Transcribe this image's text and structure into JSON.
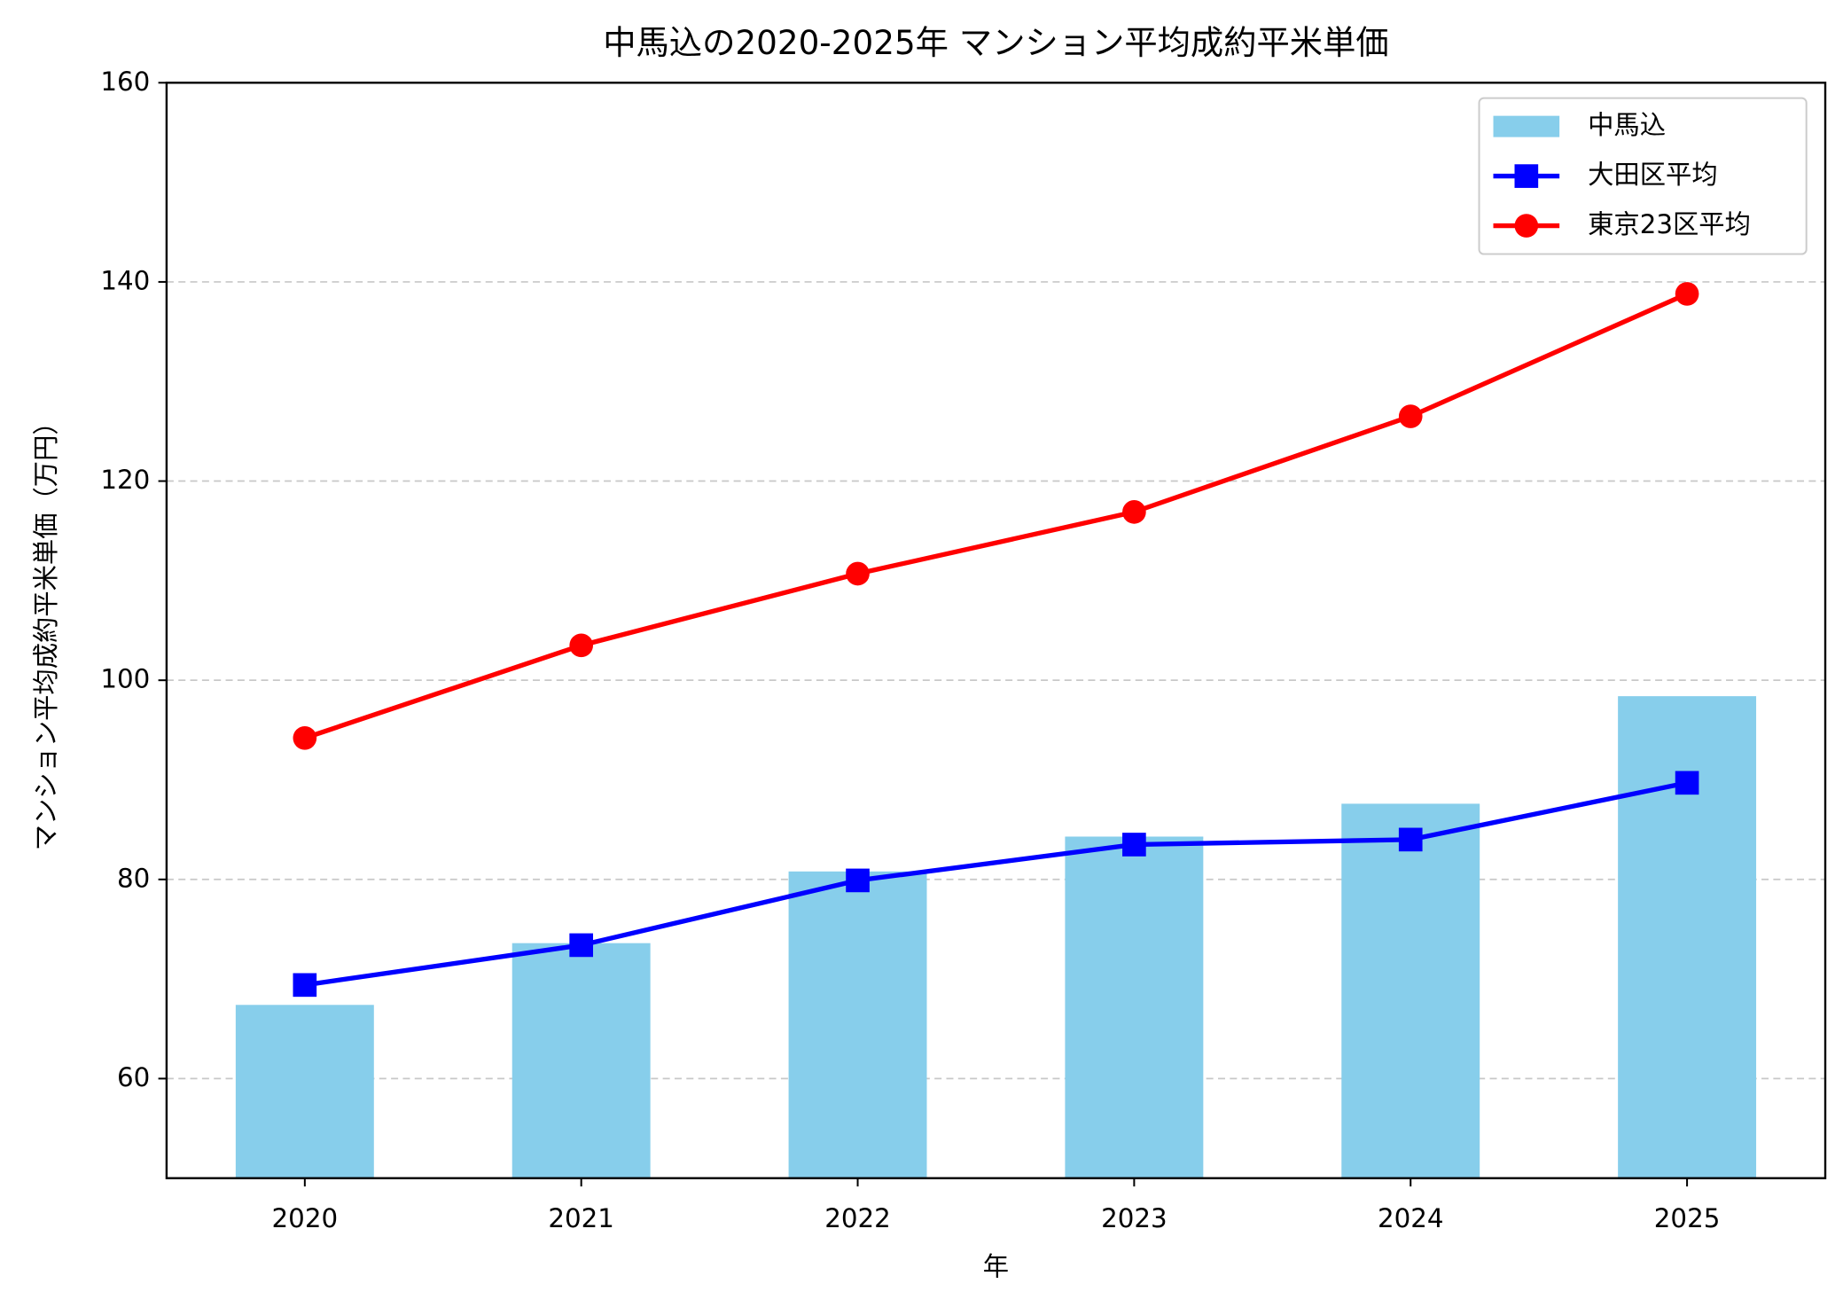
{
  "chart_data": {
    "type": "bar",
    "title": "中馬込の2020-2025年 マンション平均成約平米単価",
    "x_label": "年",
    "y_label": "マンション平均成約平米単価（万円）",
    "categories": [
      "2020",
      "2021",
      "2022",
      "2023",
      "2024",
      "2025"
    ],
    "series": [
      {
        "name": "中馬込",
        "type": "bar",
        "color": "#87ceeb",
        "values": [
          67.4,
          73.6,
          80.8,
          84.3,
          87.6,
          98.4
        ]
      },
      {
        "name": "大田区平均",
        "type": "line",
        "marker": "square",
        "color": "#0000ff",
        "values": [
          69.4,
          73.4,
          79.9,
          83.5,
          84.0,
          89.7
        ]
      },
      {
        "name": "東京23区平均",
        "type": "line",
        "marker": "circle",
        "color": "#ff0000",
        "values": [
          94.2,
          103.5,
          110.7,
          116.9,
          126.5,
          138.8
        ]
      }
    ],
    "ylim": [
      50,
      160
    ],
    "yticks": [
      60,
      80,
      100,
      120,
      140,
      160
    ],
    "grid": true,
    "legend": "upper right"
  }
}
